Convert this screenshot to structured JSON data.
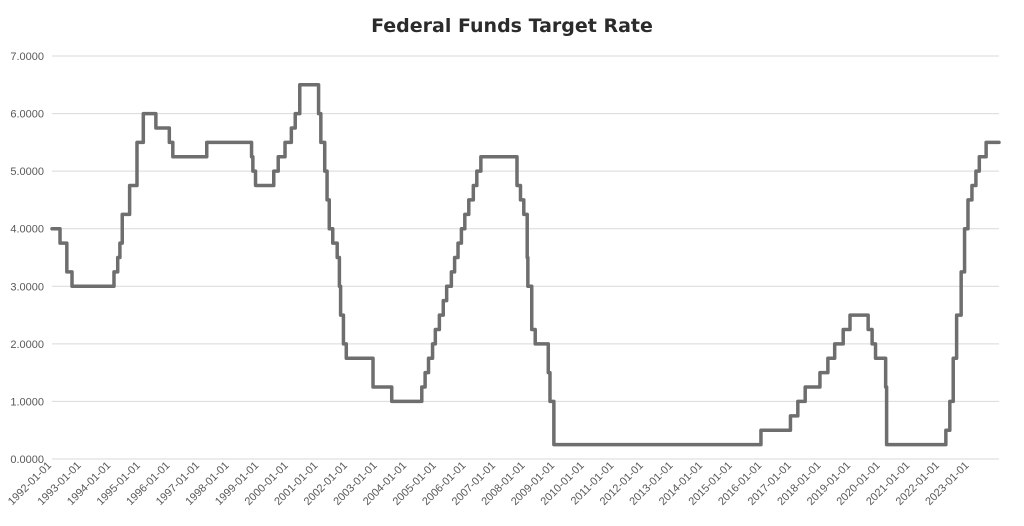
{
  "chart_data": {
    "type": "line",
    "title": "Federal Funds Target Rate",
    "xlabel": "",
    "ylabel": "",
    "ylim": [
      0,
      7
    ],
    "yticks": [
      "0.0000",
      "1.0000",
      "2.0000",
      "3.0000",
      "4.0000",
      "5.0000",
      "6.0000",
      "7.0000"
    ],
    "xticks": [
      "1992-01-01",
      "1993-01-01",
      "1994-01-01",
      "1995-01-01",
      "1996-01-01",
      "1997-01-01",
      "1998-01-01",
      "1999-01-01",
      "2000-01-01",
      "2001-01-01",
      "2002-01-01",
      "2003-01-01",
      "2004-01-01",
      "2005-01-01",
      "2006-01-01",
      "2007-01-01",
      "2008-01-01",
      "2009-01-01",
      "2010-01-01",
      "2011-01-01",
      "2012-01-01",
      "2013-01-01",
      "2014-01-01",
      "2015-01-01",
      "2016-01-01",
      "2017-01-01",
      "2018-01-01",
      "2019-01-01",
      "2020-01-01",
      "2021-01-01",
      "2022-01-01",
      "2023-01-01"
    ],
    "xrange": [
      "1992-01-01",
      "2024-01-01"
    ],
    "grid": true,
    "line_color": "#6e6e6e",
    "series": [
      {
        "points": [
          [
            "1992-01-01",
            4.0
          ],
          [
            "1992-04-09",
            3.75
          ],
          [
            "1992-07-02",
            3.25
          ],
          [
            "1992-09-04",
            3.0
          ],
          [
            "1994-02-04",
            3.25
          ],
          [
            "1994-03-22",
            3.5
          ],
          [
            "1994-04-18",
            3.75
          ],
          [
            "1994-05-17",
            4.25
          ],
          [
            "1994-08-16",
            4.75
          ],
          [
            "1994-11-15",
            5.5
          ],
          [
            "1995-02-01",
            6.0
          ],
          [
            "1995-07-06",
            5.75
          ],
          [
            "1995-12-19",
            5.5
          ],
          [
            "1996-01-31",
            5.25
          ],
          [
            "1997-03-25",
            5.5
          ],
          [
            "1998-09-29",
            5.25
          ],
          [
            "1998-10-15",
            5.0
          ],
          [
            "1998-11-17",
            4.75
          ],
          [
            "1999-06-30",
            5.0
          ],
          [
            "1999-08-24",
            5.25
          ],
          [
            "1999-11-16",
            5.5
          ],
          [
            "2000-02-02",
            5.75
          ],
          [
            "2000-03-21",
            6.0
          ],
          [
            "2000-05-16",
            6.5
          ],
          [
            "2001-01-03",
            6.0
          ],
          [
            "2001-01-31",
            5.5
          ],
          [
            "2001-03-20",
            5.0
          ],
          [
            "2001-04-18",
            4.5
          ],
          [
            "2001-05-15",
            4.0
          ],
          [
            "2001-06-27",
            3.75
          ],
          [
            "2001-08-21",
            3.5
          ],
          [
            "2001-09-17",
            3.0
          ],
          [
            "2001-10-02",
            2.5
          ],
          [
            "2001-11-06",
            2.0
          ],
          [
            "2001-12-11",
            1.75
          ],
          [
            "2002-11-06",
            1.25
          ],
          [
            "2003-06-25",
            1.0
          ],
          [
            "2004-06-30",
            1.25
          ],
          [
            "2004-08-10",
            1.5
          ],
          [
            "2004-09-21",
            1.75
          ],
          [
            "2004-11-10",
            2.0
          ],
          [
            "2004-12-14",
            2.25
          ],
          [
            "2005-02-02",
            2.5
          ],
          [
            "2005-03-22",
            2.75
          ],
          [
            "2005-05-03",
            3.0
          ],
          [
            "2005-06-30",
            3.25
          ],
          [
            "2005-08-09",
            3.5
          ],
          [
            "2005-09-20",
            3.75
          ],
          [
            "2005-11-01",
            4.0
          ],
          [
            "2005-12-13",
            4.25
          ],
          [
            "2006-01-31",
            4.5
          ],
          [
            "2006-03-28",
            4.75
          ],
          [
            "2006-05-10",
            5.0
          ],
          [
            "2006-06-29",
            5.25
          ],
          [
            "2007-09-18",
            4.75
          ],
          [
            "2007-10-31",
            4.5
          ],
          [
            "2007-12-11",
            4.25
          ],
          [
            "2008-01-22",
            3.5
          ],
          [
            "2008-01-30",
            3.0
          ],
          [
            "2008-03-18",
            2.25
          ],
          [
            "2008-04-30",
            2.0
          ],
          [
            "2008-10-08",
            1.5
          ],
          [
            "2008-10-29",
            1.0
          ],
          [
            "2008-12-16",
            0.25
          ],
          [
            "2015-12-16",
            0.5
          ],
          [
            "2016-12-14",
            0.75
          ],
          [
            "2017-03-15",
            1.0
          ],
          [
            "2017-06-14",
            1.25
          ],
          [
            "2017-12-13",
            1.5
          ],
          [
            "2018-03-21",
            1.75
          ],
          [
            "2018-06-13",
            2.0
          ],
          [
            "2018-09-26",
            2.25
          ],
          [
            "2018-12-19",
            2.5
          ],
          [
            "2019-07-31",
            2.25
          ],
          [
            "2019-09-18",
            2.0
          ],
          [
            "2019-10-30",
            1.75
          ],
          [
            "2020-03-03",
            1.25
          ],
          [
            "2020-03-15",
            0.25
          ],
          [
            "2022-03-16",
            0.5
          ],
          [
            "2022-05-04",
            1.0
          ],
          [
            "2022-06-15",
            1.75
          ],
          [
            "2022-07-27",
            2.5
          ],
          [
            "2022-09-21",
            3.25
          ],
          [
            "2022-11-02",
            4.0
          ],
          [
            "2022-12-14",
            4.5
          ],
          [
            "2023-02-01",
            4.75
          ],
          [
            "2023-03-22",
            5.0
          ],
          [
            "2023-05-03",
            5.25
          ],
          [
            "2023-07-26",
            5.5
          ],
          [
            "2024-01-01",
            5.5
          ]
        ]
      }
    ]
  }
}
